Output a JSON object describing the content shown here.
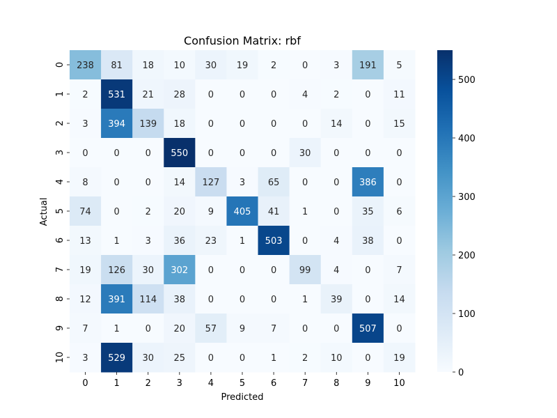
{
  "chart_data": {
    "type": "heatmap",
    "title": "Confusion Matrix: rbf",
    "xlabel": "Predicted",
    "ylabel": "Actual",
    "x_categories": [
      "0",
      "1",
      "2",
      "3",
      "4",
      "5",
      "6",
      "7",
      "8",
      "9",
      "10"
    ],
    "y_categories": [
      "0",
      "1",
      "2",
      "3",
      "4",
      "5",
      "6",
      "7",
      "8",
      "9",
      "10"
    ],
    "values": [
      [
        238,
        81,
        18,
        10,
        30,
        19,
        2,
        0,
        3,
        191,
        5
      ],
      [
        2,
        531,
        21,
        28,
        0,
        0,
        0,
        4,
        2,
        0,
        11
      ],
      [
        3,
        394,
        139,
        18,
        0,
        0,
        0,
        0,
        14,
        0,
        15
      ],
      [
        0,
        0,
        0,
        550,
        0,
        0,
        0,
        30,
        0,
        0,
        0
      ],
      [
        8,
        0,
        0,
        14,
        127,
        3,
        65,
        0,
        0,
        386,
        0
      ],
      [
        74,
        0,
        2,
        20,
        9,
        405,
        41,
        1,
        0,
        35,
        6
      ],
      [
        13,
        1,
        3,
        36,
        23,
        1,
        503,
        0,
        4,
        38,
        0
      ],
      [
        19,
        126,
        30,
        302,
        0,
        0,
        0,
        99,
        4,
        0,
        7
      ],
      [
        12,
        391,
        114,
        38,
        0,
        0,
        0,
        1,
        39,
        0,
        14
      ],
      [
        7,
        1,
        0,
        20,
        57,
        9,
        7,
        0,
        0,
        507,
        0
      ],
      [
        3,
        529,
        30,
        25,
        0,
        0,
        1,
        2,
        10,
        0,
        19
      ]
    ],
    "colormap": "Blues",
    "vmin": 0,
    "vmax": 550,
    "colorbar_ticks": [
      0,
      100,
      200,
      300,
      400,
      500
    ],
    "grid": false
  }
}
